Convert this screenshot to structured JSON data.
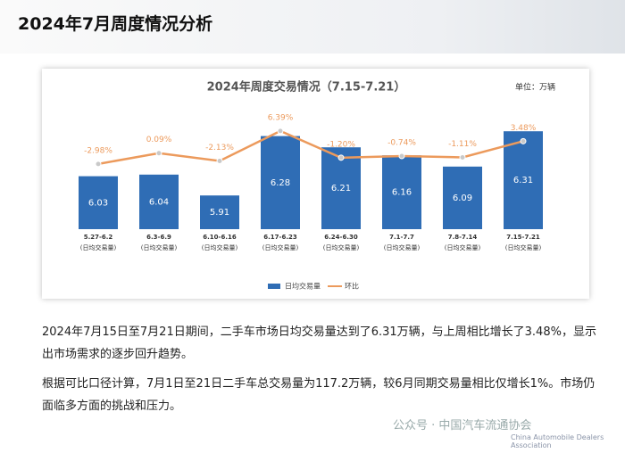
{
  "header": {
    "title": "2024年7月周度情况分析"
  },
  "chart_data": {
    "type": "bar-line",
    "title": "2024年周度交易情况（7.15-7.21）",
    "unit": "单位：万辆",
    "categories": [
      "5.27-6.2",
      "6.3-6.9",
      "6.10-6.16",
      "6.17-6.23",
      "6.24-6.30",
      "7.1-7.7",
      "7.8-7.14",
      "7.15-7.21"
    ],
    "category_sublabel": "(日均交易量)",
    "ylim": [
      5.7,
      6.4
    ],
    "y2lim": [
      -21.5,
      10.4
    ],
    "series": [
      {
        "name": "日均交易量",
        "type": "bar",
        "color": "#2f6db5",
        "values": [
          6.03,
          6.04,
          5.91,
          6.28,
          6.21,
          6.16,
          6.09,
          6.31
        ]
      },
      {
        "name": "环比",
        "type": "line",
        "axis": "y2",
        "color": "#ec9a5c",
        "values": [
          -2.98,
          0.09,
          -2.13,
          6.39,
          -1.2,
          -0.74,
          -1.11,
          3.48
        ],
        "value_labels": [
          "-2.98%",
          "0.09%",
          "-2.13%",
          "6.39%",
          "-1.20%",
          "-0.74%",
          "-1.11%",
          "3.48%"
        ]
      }
    ]
  },
  "paragraphs": [
    "2024年7月15日至7月21日期间，二手车市场日均交易量达到了6.31万辆，与上周相比增长了3.48%，显示出市场需求的逐步回升趋势。",
    "根据可比口径计算，7月1日至21日二手车总交易量为117.2万辆，较6月同期交易量相比仅增长1%。市场仍面临多方面的挑战和压力。"
  ],
  "watermark": {
    "source": "公众号 · 中国汽车流通协会",
    "english": "China Automobile Dealers Association"
  }
}
